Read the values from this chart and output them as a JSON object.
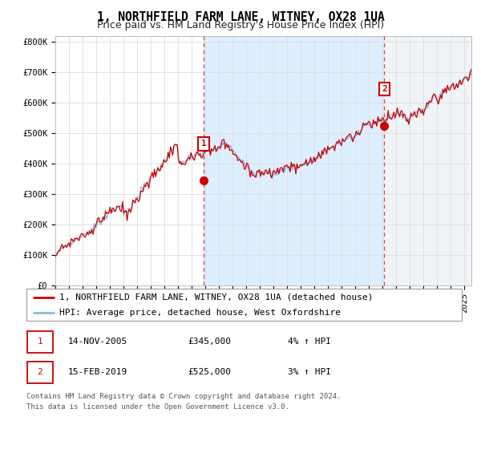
{
  "title": "1, NORTHFIELD FARM LANE, WITNEY, OX28 1UA",
  "subtitle": "Price paid vs. HM Land Registry's House Price Index (HPI)",
  "ylabel_ticks": [
    "£0",
    "£100K",
    "£200K",
    "£300K",
    "£400K",
    "£500K",
    "£600K",
    "£700K",
    "£800K"
  ],
  "ytick_values": [
    0,
    100000,
    200000,
    300000,
    400000,
    500000,
    600000,
    700000,
    800000
  ],
  "ylim": [
    0,
    820000
  ],
  "xlim_start": 1995.0,
  "xlim_end": 2025.5,
  "sale1_x": 2005.87,
  "sale1_y": 345000,
  "sale1_label": "1",
  "sale2_x": 2019.12,
  "sale2_y": 525000,
  "sale2_label": "2",
  "line_color_red": "#cc0000",
  "line_color_blue": "#88bbdd",
  "shade_color": "#ddeeff",
  "dashed_color": "#dd4444",
  "background_color": "#ffffff",
  "grid_color": "#dddddd",
  "legend_line1": "1, NORTHFIELD FARM LANE, WITNEY, OX28 1UA (detached house)",
  "legend_line2": "HPI: Average price, detached house, West Oxfordshire",
  "table_row1": [
    "1",
    "14-NOV-2005",
    "£345,000",
    "4% ↑ HPI"
  ],
  "table_row2": [
    "2",
    "15-FEB-2019",
    "£525,000",
    "3% ↑ HPI"
  ],
  "footer": "Contains HM Land Registry data © Crown copyright and database right 2024.\nThis data is licensed under the Open Government Licence v3.0.",
  "title_fontsize": 10.5,
  "subtitle_fontsize": 9,
  "axis_fontsize": 7.5,
  "legend_fontsize": 8,
  "table_fontsize": 8,
  "footer_fontsize": 6.5
}
